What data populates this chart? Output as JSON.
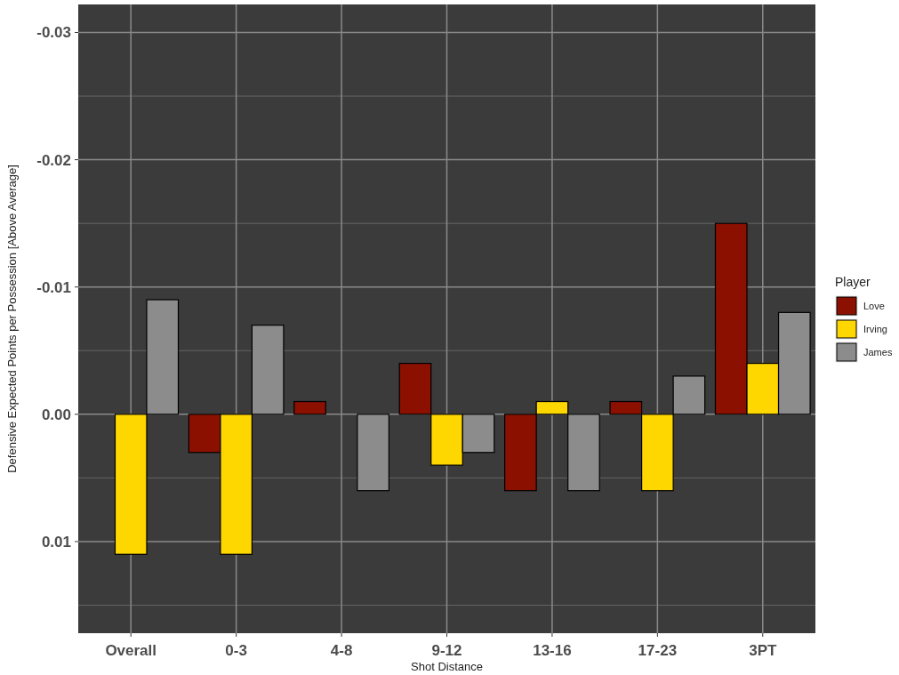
{
  "chart_data": {
    "type": "bar",
    "xlabel": "Shot Distance",
    "ylabel": "Defensive Expected Points per Possession [Above Average]",
    "legend_title": "Player",
    "categories": [
      "Overall",
      "0-3",
      "4-8",
      "9-12",
      "13-16",
      "17-23",
      "3PT"
    ],
    "series": [
      {
        "name": "Love",
        "color": "#8b1000",
        "values": [
          0,
          0.003,
          -0.001,
          -0.004,
          0.006,
          -0.001,
          -0.015
        ]
      },
      {
        "name": "Irving",
        "color": "#ffd700",
        "values": [
          0.011,
          0.011,
          0,
          0.004,
          -0.001,
          0.006,
          -0.004
        ]
      },
      {
        "name": "James",
        "color": "#8c8c8c",
        "values": [
          -0.009,
          -0.007,
          0.006,
          0.003,
          0.006,
          -0.003,
          -0.008
        ]
      }
    ],
    "ylim": [
      0.0172,
      -0.0322
    ],
    "yticks": [
      {
        "value": -0.03,
        "label": "-0.03"
      },
      {
        "value": -0.02,
        "label": "-0.02"
      },
      {
        "value": -0.01,
        "label": "-0.01"
      },
      {
        "value": 0,
        "label": "0.00"
      },
      {
        "value": 0.01,
        "label": "0.01"
      }
    ],
    "grid": true,
    "legend": "right"
  }
}
